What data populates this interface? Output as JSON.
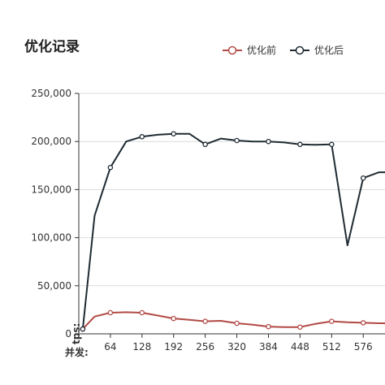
{
  "chart_data": {
    "type": "line",
    "title": "优化记录",
    "ylabel": "tps:",
    "xlabel": "并发:",
    "ylim": [
      0,
      250000
    ],
    "xlim": [
      0,
      620
    ],
    "yticks": [
      "0",
      "50,000",
      "100,000",
      "150,000",
      "200,000",
      "250,000"
    ],
    "ytick_values": [
      0,
      50000,
      100000,
      150000,
      200000,
      250000
    ],
    "xticks": [
      "64",
      "128",
      "192",
      "256",
      "320",
      "384",
      "448",
      "512",
      "576"
    ],
    "xtick_values": [
      64,
      128,
      192,
      256,
      320,
      384,
      448,
      512,
      576
    ],
    "grid": true,
    "legend_position": "top-right",
    "series": [
      {
        "name": "优化前",
        "color": "#b24a45",
        "x": [
          8,
          32,
          64,
          96,
          128,
          160,
          192,
          224,
          256,
          288,
          320,
          352,
          384,
          416,
          448,
          480,
          512,
          544,
          576,
          608,
          620
        ],
        "y": [
          5000,
          18000,
          22000,
          22500,
          22000,
          19000,
          16000,
          14500,
          13000,
          13500,
          11000,
          9500,
          7500,
          7000,
          7000,
          10500,
          13000,
          12000,
          11500,
          11000,
          11000
        ],
        "markers": [
          true,
          false,
          true,
          false,
          true,
          false,
          true,
          false,
          true,
          false,
          true,
          false,
          true,
          false,
          true,
          false,
          true,
          false,
          true,
          false,
          false
        ]
      },
      {
        "name": "优化后",
        "color": "#1f2b33",
        "x": [
          8,
          32,
          64,
          96,
          128,
          160,
          192,
          224,
          256,
          288,
          320,
          352,
          384,
          416,
          448,
          480,
          512,
          544,
          576,
          608,
          620
        ],
        "y": [
          5000,
          123000,
          173000,
          200000,
          205000,
          207000,
          208000,
          208000,
          197000,
          203000,
          201000,
          200000,
          200000,
          199000,
          197000,
          196500,
          197000,
          92000,
          162000,
          168000,
          168000
        ],
        "markers": [
          true,
          false,
          true,
          false,
          true,
          false,
          true,
          false,
          true,
          false,
          true,
          false,
          true,
          false,
          true,
          false,
          true,
          false,
          true,
          false,
          false
        ]
      }
    ]
  }
}
